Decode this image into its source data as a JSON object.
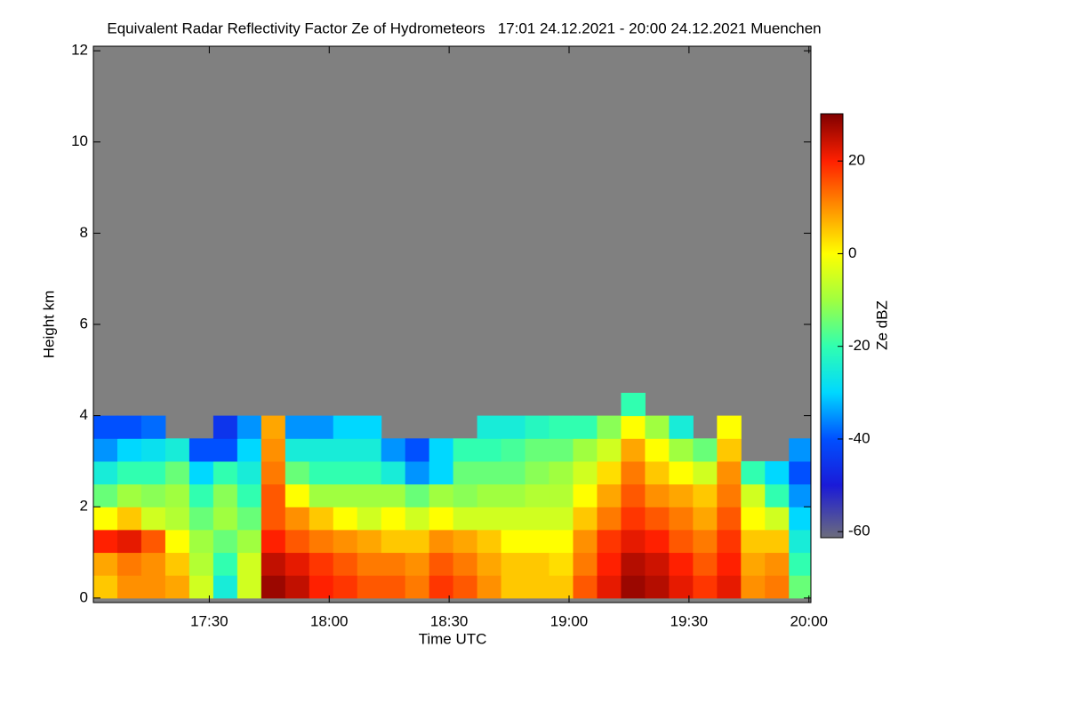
{
  "chart_data": {
    "type": "heatmap",
    "title": "Equivalent Radar Reflectivity Factor Ze of Hydrometeors   17:01 24.12.2021 - 20:00 24.12.2021 Muenchen",
    "x_label": "Time UTC",
    "y_label": "Height km",
    "colorbar_label": "Ze dBZ",
    "x": [
      1024,
      1030,
      1036,
      1042,
      1048,
      1054,
      1060,
      1066,
      1072,
      1078,
      1084,
      1090,
      1096,
      1102,
      1108,
      1114,
      1120,
      1126,
      1132,
      1138,
      1144,
      1150,
      1156,
      1162,
      1168,
      1174,
      1180,
      1186,
      1192,
      1198
    ],
    "x_step": 6,
    "y": [
      0.25,
      0.75,
      1.25,
      1.75,
      2.25,
      2.75,
      3.25,
      3.75,
      4.25
    ],
    "y_step": 0.5,
    "z": [
      [
        5,
        10,
        10,
        8,
        -5,
        -25,
        -5,
        28,
        25,
        20,
        18,
        15,
        15,
        12,
        18,
        15,
        10,
        5,
        5,
        5,
        15,
        22,
        28,
        26,
        22,
        18,
        22,
        10,
        12,
        -15
      ],
      [
        8,
        12,
        10,
        5,
        -8,
        -20,
        -5,
        25,
        22,
        18,
        15,
        12,
        12,
        10,
        15,
        12,
        8,
        5,
        5,
        3,
        12,
        20,
        26,
        24,
        20,
        15,
        20,
        8,
        10,
        -20
      ],
      [
        20,
        22,
        15,
        0,
        -10,
        -15,
        -10,
        20,
        15,
        12,
        10,
        8,
        5,
        5,
        10,
        8,
        5,
        0,
        0,
        0,
        10,
        18,
        22,
        20,
        15,
        12,
        18,
        5,
        5,
        -25
      ],
      [
        0,
        5,
        -5,
        -8,
        -15,
        -10,
        -15,
        15,
        10,
        5,
        0,
        -5,
        0,
        -5,
        0,
        -5,
        -5,
        -5,
        -5,
        -5,
        5,
        12,
        18,
        15,
        12,
        8,
        15,
        0,
        -5,
        -30
      ],
      [
        -15,
        -10,
        -12,
        -10,
        -20,
        -12,
        -20,
        15,
        0,
        -10,
        -10,
        -10,
        -10,
        -15,
        -10,
        -12,
        -10,
        -10,
        -8,
        -8,
        0,
        8,
        15,
        10,
        8,
        5,
        12,
        -5,
        -20,
        -35
      ],
      [
        -25,
        -20,
        -20,
        -15,
        -30,
        -20,
        -25,
        12,
        -15,
        -20,
        -20,
        -20,
        -25,
        -35,
        -30,
        -15,
        -15,
        -15,
        -12,
        -10,
        -5,
        3,
        12,
        5,
        0,
        -5,
        10,
        -20,
        -30,
        -40
      ],
      [
        -35,
        -30,
        -28,
        -25,
        -40,
        -40,
        -30,
        10,
        -25,
        -25,
        -25,
        -25,
        -35,
        -40,
        -30,
        -20,
        -20,
        -18,
        -15,
        -15,
        -10,
        -5,
        8,
        0,
        -10,
        -15,
        5,
        null,
        null,
        -35
      ],
      [
        -40,
        -40,
        -38,
        null,
        null,
        -45,
        -35,
        8,
        -35,
        -35,
        -30,
        -30,
        null,
        null,
        null,
        null,
        -25,
        -25,
        -22,
        -20,
        -20,
        -12,
        0,
        -10,
        -25,
        null,
        0,
        null,
        null,
        null
      ],
      [
        null,
        null,
        null,
        null,
        null,
        null,
        null,
        null,
        null,
        null,
        null,
        null,
        null,
        null,
        null,
        null,
        null,
        null,
        null,
        null,
        null,
        null,
        -20,
        null,
        null,
        null,
        null,
        null,
        null,
        null
      ]
    ],
    "xlim": [
      1021,
      1200.5
    ],
    "xticks": [
      {
        "value": 1050,
        "label": "17:30"
      },
      {
        "value": 1080,
        "label": "18:00"
      },
      {
        "value": 1110,
        "label": "18:30"
      },
      {
        "value": 1140,
        "label": "19:00"
      },
      {
        "value": 1170,
        "label": "19:30"
      },
      {
        "value": 1200,
        "label": "20:00"
      }
    ],
    "ylim": [
      -0.1,
      12.1
    ],
    "yticks": [
      0,
      2,
      4,
      6,
      8,
      10,
      12
    ],
    "clim": [
      -61.3,
      30.2
    ],
    "cticks": [
      -60,
      -40,
      -20,
      0,
      20
    ],
    "background": "#808080",
    "colorscale": [
      [
        -61.3,
        "#6c6c7c"
      ],
      [
        -50,
        "#1a1ad8"
      ],
      [
        -40,
        "#0050ff"
      ],
      [
        -30,
        "#00d8ff"
      ],
      [
        -20,
        "#30ffb0"
      ],
      [
        -10,
        "#a0ff40"
      ],
      [
        0,
        "#ffff00"
      ],
      [
        10,
        "#ff9000"
      ],
      [
        20,
        "#ff2000"
      ],
      [
        30.2,
        "#800000"
      ]
    ]
  }
}
